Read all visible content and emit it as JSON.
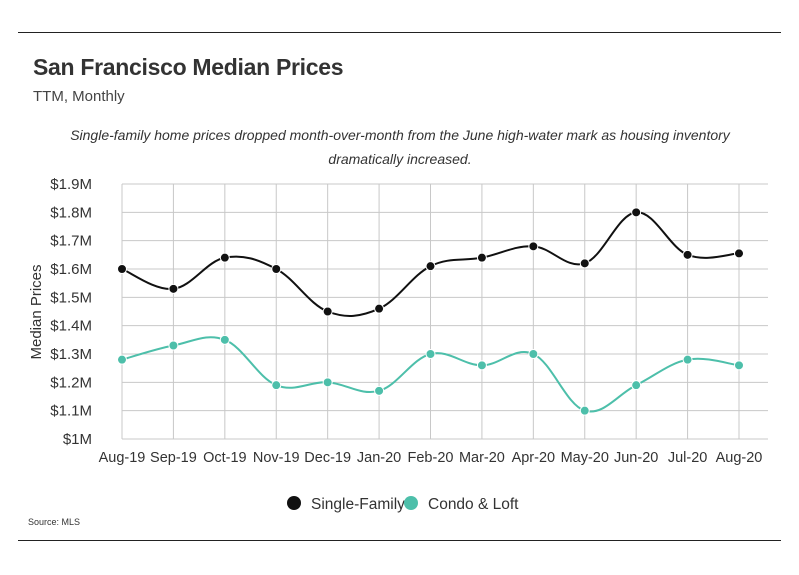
{
  "header": {
    "title": "San Francisco Median Prices",
    "subtitle": "TTM, Monthly",
    "note": "Single-family home prices dropped month-over-month from the June high-water mark as housing inventory dramatically increased."
  },
  "footer": {
    "source": "Source:  MLS"
  },
  "colors": {
    "single_family": "#111111",
    "condo_loft": "#4dbfaa",
    "grid": "#c8c8c8"
  },
  "chart_data": {
    "type": "line",
    "title": "San Francisco Median Prices",
    "subtitle": "TTM, Monthly",
    "xlabel": "",
    "ylabel": "Median Prices",
    "categories": [
      "Aug-19",
      "Sep-19",
      "Oct-19",
      "Nov-19",
      "Dec-19",
      "Jan-20",
      "Feb-20",
      "Mar-20",
      "Apr-20",
      "May-20",
      "Jun-20",
      "Jul-20",
      "Aug-20"
    ],
    "ylim": [
      1.0,
      1.9
    ],
    "y_ticks": [
      1.0,
      1.1,
      1.2,
      1.3,
      1.4,
      1.5,
      1.6,
      1.7,
      1.8,
      1.9
    ],
    "y_tick_labels": [
      "$1M",
      "$1.1M",
      "$1.2M",
      "$1.3M",
      "$1.4M",
      "$1.5M",
      "$1.6M",
      "$1.7M",
      "$1.8M",
      "$1.9M"
    ],
    "grid": true,
    "legend_position": "bottom-center",
    "series": [
      {
        "name": "Single-Family",
        "color": "#111111",
        "values": [
          1.6,
          1.53,
          1.64,
          1.6,
          1.45,
          1.46,
          1.61,
          1.64,
          1.68,
          1.62,
          1.8,
          1.65,
          1.655
        ]
      },
      {
        "name": "Condo & Loft",
        "color": "#4dbfaa",
        "values": [
          1.28,
          1.33,
          1.35,
          1.19,
          1.2,
          1.17,
          1.3,
          1.26,
          1.3,
          1.1,
          1.19,
          1.28,
          1.26
        ]
      }
    ]
  }
}
